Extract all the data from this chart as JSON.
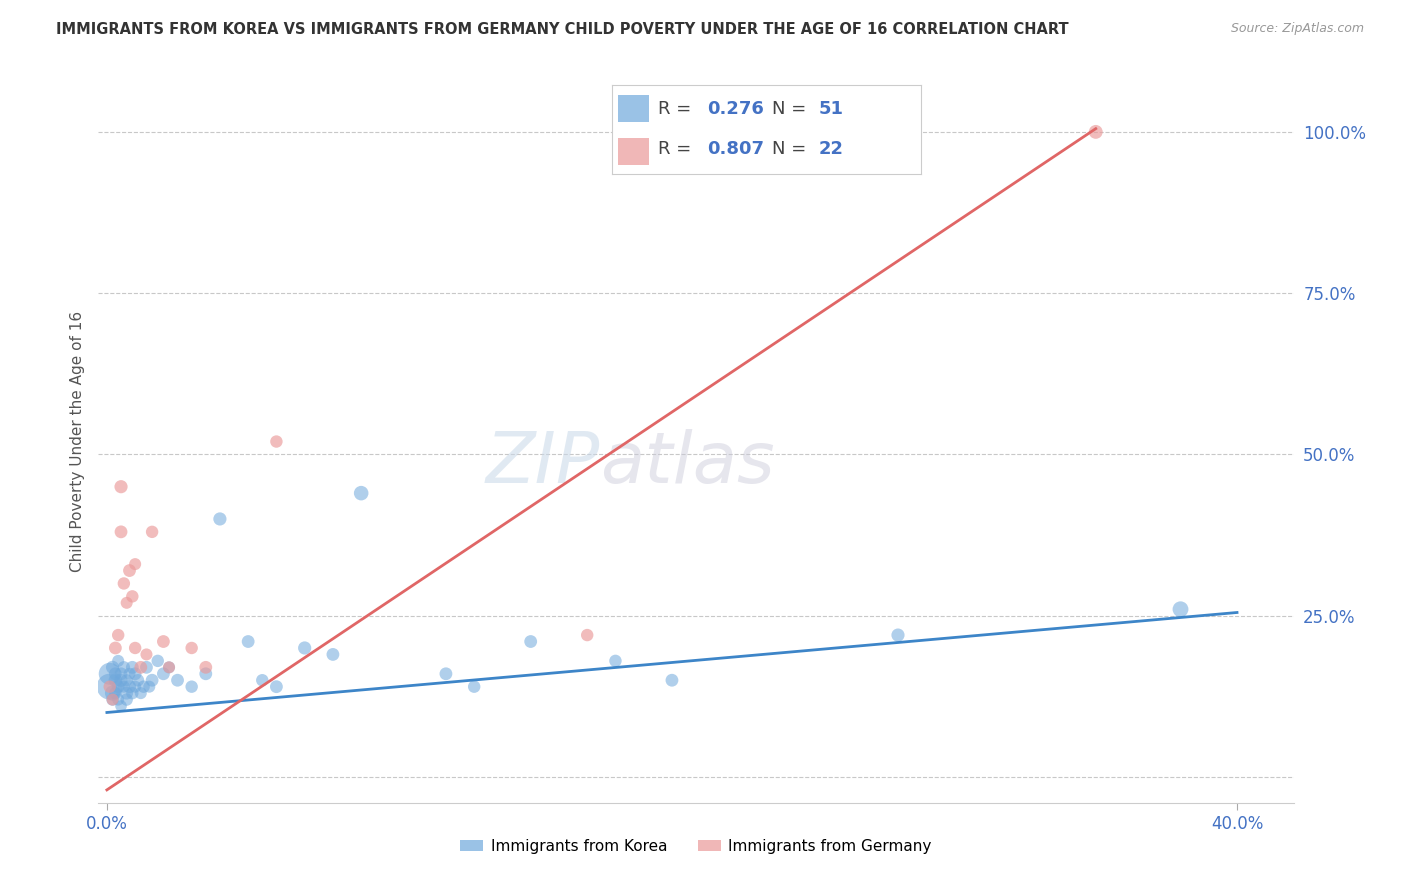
{
  "title": "IMMIGRANTS FROM KOREA VS IMMIGRANTS FROM GERMANY CHILD POVERTY UNDER THE AGE OF 16 CORRELATION CHART",
  "source_text": "Source: ZipAtlas.com",
  "ylabel_label": "Child Poverty Under the Age of 16",
  "xlim": [
    -0.003,
    0.42
  ],
  "ylim": [
    -0.04,
    1.08
  ],
  "korea_R": 0.276,
  "korea_N": 51,
  "germany_R": 0.807,
  "germany_N": 22,
  "korea_color": "#6fa8dc",
  "germany_color": "#ea9999",
  "korea_line_color": "#3d85c8",
  "germany_line_color": "#e06666",
  "background_color": "#ffffff",
  "grid_color": "#c8c8c8",
  "legend_korea": "Immigrants from Korea",
  "legend_germany": "Immigrants from Germany",
  "korea_line_x0": 0.0,
  "korea_line_y0": 0.1,
  "korea_line_x1": 0.4,
  "korea_line_y1": 0.255,
  "germany_line_x0": 0.0,
  "germany_line_y0": -0.02,
  "germany_line_x1": 0.35,
  "germany_line_y1": 1.005,
  "korea_scatter_x": [
    0.001,
    0.001,
    0.002,
    0.002,
    0.002,
    0.003,
    0.003,
    0.003,
    0.004,
    0.004,
    0.004,
    0.005,
    0.005,
    0.005,
    0.006,
    0.006,
    0.007,
    0.007,
    0.007,
    0.008,
    0.008,
    0.009,
    0.009,
    0.01,
    0.01,
    0.011,
    0.012,
    0.013,
    0.014,
    0.015,
    0.016,
    0.018,
    0.02,
    0.022,
    0.025,
    0.03,
    0.035,
    0.04,
    0.05,
    0.055,
    0.06,
    0.07,
    0.08,
    0.09,
    0.12,
    0.13,
    0.15,
    0.18,
    0.2,
    0.28,
    0.38
  ],
  "korea_scatter_y": [
    0.14,
    0.16,
    0.13,
    0.17,
    0.12,
    0.15,
    0.13,
    0.16,
    0.12,
    0.14,
    0.18,
    0.15,
    0.11,
    0.16,
    0.14,
    0.17,
    0.13,
    0.15,
    0.12,
    0.14,
    0.16,
    0.13,
    0.17,
    0.14,
    0.16,
    0.15,
    0.13,
    0.14,
    0.17,
    0.14,
    0.15,
    0.18,
    0.16,
    0.17,
    0.15,
    0.14,
    0.16,
    0.4,
    0.21,
    0.15,
    0.14,
    0.2,
    0.19,
    0.44,
    0.16,
    0.14,
    0.21,
    0.18,
    0.15,
    0.22,
    0.26
  ],
  "korea_scatter_size": [
    350,
    250,
    120,
    90,
    80,
    95,
    80,
    85,
    75,
    85,
    75,
    90,
    70,
    85,
    75,
    80,
    85,
    75,
    80,
    90,
    75,
    80,
    85,
    75,
    85,
    80,
    75,
    80,
    85,
    75,
    85,
    80,
    85,
    75,
    85,
    80,
    85,
    90,
    85,
    80,
    85,
    90,
    85,
    110,
    85,
    80,
    85,
    80,
    85,
    90,
    130
  ],
  "germany_scatter_x": [
    0.001,
    0.002,
    0.003,
    0.004,
    0.005,
    0.005,
    0.006,
    0.007,
    0.008,
    0.009,
    0.01,
    0.01,
    0.012,
    0.014,
    0.016,
    0.02,
    0.022,
    0.03,
    0.035,
    0.06,
    0.17,
    0.35
  ],
  "germany_scatter_y": [
    0.14,
    0.12,
    0.2,
    0.22,
    0.45,
    0.38,
    0.3,
    0.27,
    0.32,
    0.28,
    0.33,
    0.2,
    0.17,
    0.19,
    0.38,
    0.21,
    0.17,
    0.2,
    0.17,
    0.52,
    0.22,
    1.0
  ],
  "germany_scatter_size": [
    80,
    75,
    85,
    80,
    90,
    85,
    80,
    75,
    85,
    80,
    75,
    80,
    85,
    75,
    80,
    85,
    75,
    80,
    85,
    80,
    80,
    100
  ]
}
